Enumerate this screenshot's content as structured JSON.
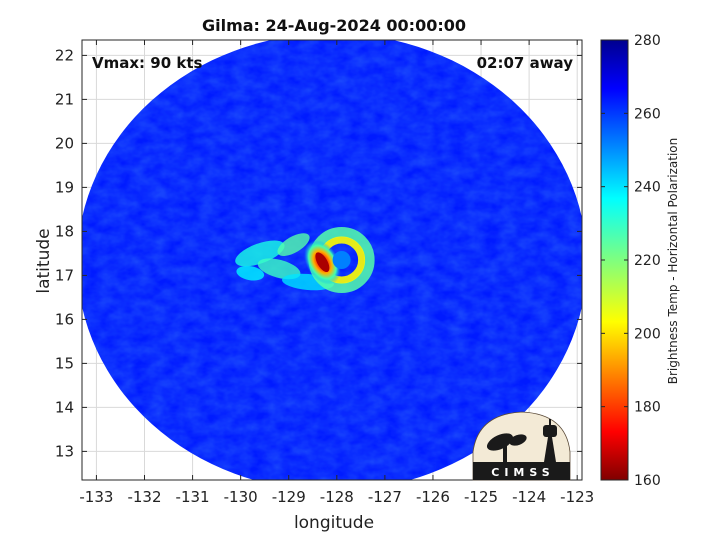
{
  "chart_data": {
    "type": "heatmap",
    "title": "Gilma: 24-Aug-2024 00:00:00",
    "xlabel": "longitude",
    "ylabel": "latitude",
    "xlim": [
      -133.3,
      -122.9
    ],
    "ylim": [
      12.35,
      22.35
    ],
    "xticks": [
      -133,
      -132,
      -131,
      -130,
      -129,
      -128,
      -127,
      -126,
      -125,
      -124,
      -123
    ],
    "yticks": [
      13,
      14,
      15,
      16,
      17,
      18,
      19,
      20,
      21,
      22
    ],
    "grid": true,
    "swath": {
      "center_lon": -128.1,
      "center_lat": 17.3,
      "radius_lon": 5.3,
      "radius_lat": 5.2,
      "typical_value": 262
    },
    "storm": {
      "eye_lon": -127.9,
      "eye_lat": 17.35,
      "eye_value": 250,
      "min_value": 165,
      "min_lon": -128.3,
      "min_lat": 17.3
    },
    "colorbar": {
      "label": "Brightness Temp - Horizontal Polarization",
      "min": 160,
      "max": 280,
      "ticks": [
        160,
        180,
        200,
        220,
        240,
        260,
        280
      ],
      "colormap": "jet"
    },
    "annotations": {
      "vmax": "Vmax: 90 kts",
      "timing": "02:07 away"
    }
  },
  "logo": {
    "text": "CIMSS",
    "name": "CIMSS logo"
  }
}
